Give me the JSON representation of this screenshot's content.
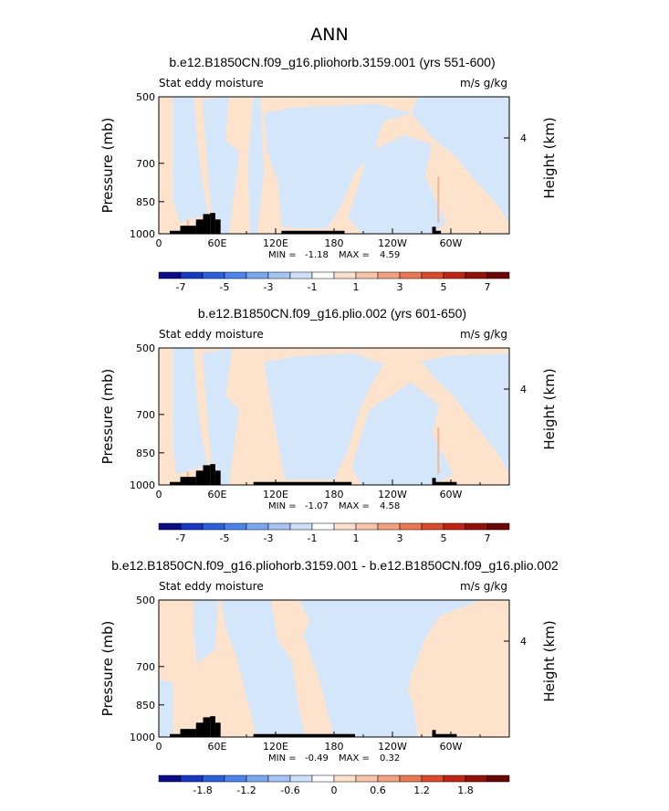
{
  "main_title": "ANN",
  "colors": {
    "neg_light": "#d4e6fa",
    "pos_light": "#fde3cc",
    "terrain": "#000000",
    "pos_band": "#f5b497"
  },
  "chart_data": [
    {
      "type": "heatmap",
      "title": "b.e12.B1850CN.f09_g16.pliohorb.3159.001 (yrs 551-600)",
      "left_label": "Stat eddy moisture",
      "right_label": "m/s g/kg",
      "ylabel": "Pressure (mb)",
      "ylabel_right": "Height (km)",
      "yticks": [
        "500",
        "700",
        "850",
        "1000"
      ],
      "ytick_right": "4",
      "xticks": [
        "0",
        "60E",
        "120E",
        "180",
        "120W",
        "60W"
      ],
      "xlim": [
        0,
        360
      ],
      "ylim": [
        1000,
        500
      ],
      "min_text": "MIN =",
      "min_value": "-1.18",
      "max_text": "MAX =",
      "max_value": "4.59",
      "colorbar_labels": [
        "-7",
        "-5",
        "-3",
        "-1",
        "1",
        "3",
        "5",
        "7"
      ],
      "colorbar_colors": [
        "#0a0a8a",
        "#1438c8",
        "#2860e0",
        "#4a84ee",
        "#78a8f2",
        "#a4c4f6",
        "#cce0fa",
        "#ffffff",
        "#fde0ca",
        "#f9c3a8",
        "#f4a07e",
        "#ec7650",
        "#de4a28",
        "#c42212",
        "#961008",
        "#6e0404"
      ]
    },
    {
      "type": "heatmap",
      "title": "b.e12.B1850CN.f09_g16.plio.002 (yrs 601-650)",
      "left_label": "Stat eddy moisture",
      "right_label": "m/s g/kg",
      "ylabel": "Pressure (mb)",
      "ylabel_right": "Height (km)",
      "yticks": [
        "500",
        "700",
        "850",
        "1000"
      ],
      "ytick_right": "4",
      "xticks": [
        "0",
        "60E",
        "120E",
        "180",
        "120W",
        "60W"
      ],
      "xlim": [
        0,
        360
      ],
      "ylim": [
        1000,
        500
      ],
      "min_text": "MIN =",
      "min_value": "-1.07",
      "max_text": "MAX =",
      "max_value": "4.58",
      "colorbar_labels": [
        "-7",
        "-5",
        "-3",
        "-1",
        "1",
        "3",
        "5",
        "7"
      ],
      "colorbar_colors": [
        "#0a0a8a",
        "#1438c8",
        "#2860e0",
        "#4a84ee",
        "#78a8f2",
        "#a4c4f6",
        "#cce0fa",
        "#ffffff",
        "#fde0ca",
        "#f9c3a8",
        "#f4a07e",
        "#ec7650",
        "#de4a28",
        "#c42212",
        "#961008",
        "#6e0404"
      ]
    },
    {
      "type": "heatmap",
      "title": "b.e12.B1850CN.f09_g16.pliohorb.3159.001 - b.e12.B1850CN.f09_g16.plio.002",
      "left_label": "Stat eddy moisture",
      "right_label": "m/s g/kg",
      "ylabel": "Pressure (mb)",
      "ylabel_right": "Height (km)",
      "yticks": [
        "500",
        "700",
        "850",
        "1000"
      ],
      "ytick_right": "4",
      "xticks": [
        "0",
        "60E",
        "120E",
        "180",
        "120W",
        "60W"
      ],
      "xlim": [
        0,
        360
      ],
      "ylim": [
        1000,
        500
      ],
      "min_text": "MIN =",
      "min_value": "-0.49",
      "max_text": "MAX =",
      "max_value": "0.32",
      "colorbar_labels": [
        "-1.8",
        "-1.2",
        "-0.6",
        "0",
        "0.6",
        "1.2",
        "1.8"
      ],
      "colorbar_colors": [
        "#0a0a8a",
        "#1438c8",
        "#2860e0",
        "#4a84ee",
        "#78a8f2",
        "#a4c4f6",
        "#cce0fa",
        "#ffffff",
        "#fde0ca",
        "#f9c3a8",
        "#f4a07e",
        "#ec7650",
        "#de4a28",
        "#c42212",
        "#961008",
        "#6e0404"
      ]
    }
  ]
}
